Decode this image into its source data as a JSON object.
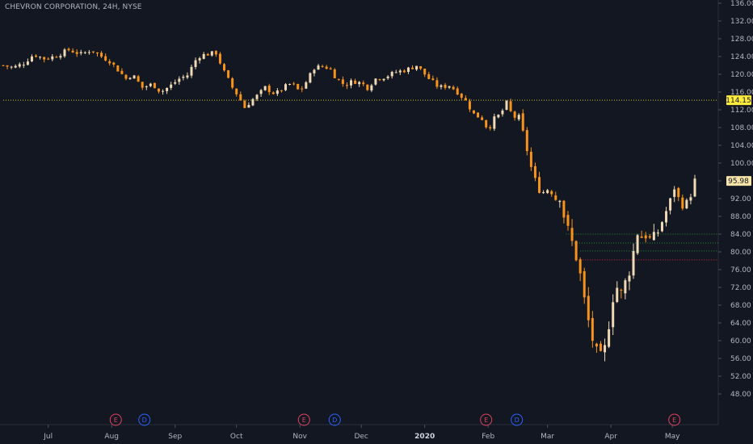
{
  "title": "CHEVRON CORPORATION, 24H, NYSE",
  "colors": {
    "background": "#131722",
    "up_candle": "#f0d9b5",
    "down_candle": "#f7931a",
    "axis_text": "#b2b5be",
    "price_line": "#c7c71a",
    "support_line": "#1f8f2f",
    "red_line": "#d0253c",
    "earnings_marker": "#e0435f",
    "dividend_marker": "#2962ff",
    "price_tag_current": "#f6e3a7",
    "price_tag_level": "#ffeb3b"
  },
  "chart_data": {
    "type": "candlestick",
    "title": "CHEVRON CORPORATION, 24H, NYSE",
    "ylim": [
      46,
      137
    ],
    "y_ticks": [
      "136.00",
      "132.00",
      "128.00",
      "124.00",
      "120.00",
      "116.00",
      "112.00",
      "108.00",
      "104.00",
      "100.00",
      "96.00",
      "92.00",
      "88.00",
      "84.00",
      "80.00",
      "76.00",
      "72.00",
      "68.00",
      "64.00",
      "60.00",
      "56.00",
      "52.00",
      "48.00"
    ],
    "x_ticks": [
      {
        "label": "Jul",
        "day": 22
      },
      {
        "label": "Aug",
        "day": 53
      },
      {
        "label": "Sep",
        "day": 84
      },
      {
        "label": "Oct",
        "day": 114
      },
      {
        "label": "Nov",
        "day": 145
      },
      {
        "label": "Dec",
        "day": 175
      },
      {
        "label": "2020",
        "day": 206,
        "bold": true
      },
      {
        "label": "Feb",
        "day": 237
      },
      {
        "label": "Mar",
        "day": 266
      },
      {
        "label": "Apr",
        "day": 297
      },
      {
        "label": "May",
        "day": 327
      }
    ],
    "price_labels": [
      {
        "label": "114.15",
        "value": 114.15,
        "style": "level"
      },
      {
        "label": "95.98",
        "value": 95.98,
        "style": "current"
      }
    ],
    "horizontal_lines": [
      {
        "value": 114.15,
        "color": "price_line",
        "from_day": 0
      },
      {
        "value": 84.0,
        "color": "support_line",
        "from_day": 275
      },
      {
        "value": 82.0,
        "color": "support_line",
        "from_day": 278
      },
      {
        "value": 80.2,
        "color": "support_line",
        "from_day": 282
      },
      {
        "value": 78.2,
        "color": "red_line",
        "from_day": 282
      }
    ],
    "events": [
      {
        "type": "E",
        "day": 55
      },
      {
        "type": "D",
        "day": 69
      },
      {
        "type": "E",
        "day": 147
      },
      {
        "type": "D",
        "day": 162
      },
      {
        "type": "E",
        "day": 236
      },
      {
        "type": "D",
        "day": 251
      },
      {
        "type": "E",
        "day": 328
      }
    ],
    "close_anchors": [
      [
        0,
        122
      ],
      [
        5,
        121.5
      ],
      [
        10,
        122.5
      ],
      [
        15,
        124.5
      ],
      [
        20,
        123.5
      ],
      [
        25,
        124
      ],
      [
        32,
        125.5
      ],
      [
        38,
        124.5
      ],
      [
        43,
        125.5
      ],
      [
        48,
        124
      ],
      [
        52,
        123
      ],
      [
        56,
        121
      ],
      [
        60,
        119
      ],
      [
        63,
        120
      ],
      [
        68,
        117
      ],
      [
        73,
        117.8
      ],
      [
        77,
        116
      ],
      [
        82,
        117.5
      ],
      [
        86,
        119
      ],
      [
        90,
        119.8
      ],
      [
        95,
        124
      ],
      [
        99,
        124.5
      ],
      [
        104,
        124.8
      ],
      [
        108,
        120.5
      ],
      [
        112,
        117
      ],
      [
        115,
        115
      ],
      [
        118,
        112.5
      ],
      [
        121,
        114
      ],
      [
        125,
        115.5
      ],
      [
        128,
        117
      ],
      [
        133,
        115.5
      ],
      [
        137,
        117
      ],
      [
        141,
        118
      ],
      [
        145,
        116
      ],
      [
        149,
        119
      ],
      [
        152,
        121.5
      ],
      [
        157,
        121.8
      ],
      [
        160,
        121
      ],
      [
        163,
        119
      ],
      [
        167,
        117.5
      ],
      [
        171,
        118.5
      ],
      [
        175,
        118
      ],
      [
        178,
        117
      ],
      [
        182,
        119
      ],
      [
        187,
        119.5
      ],
      [
        192,
        120.5
      ],
      [
        197,
        121
      ],
      [
        202,
        122
      ],
      [
        208,
        119
      ],
      [
        213,
        117
      ],
      [
        218,
        117.5
      ],
      [
        222,
        116
      ],
      [
        226,
        114
      ],
      [
        230,
        111
      ],
      [
        234,
        110
      ],
      [
        237,
        107.5
      ],
      [
        240,
        110
      ],
      [
        243,
        111
      ],
      [
        246,
        113.5
      ],
      [
        249,
        110.5
      ],
      [
        252,
        110
      ],
      [
        255,
        105
      ],
      [
        258,
        99
      ],
      [
        261,
        94.5
      ],
      [
        264,
        93.5
      ],
      [
        267,
        94.5
      ],
      [
        270,
        92
      ],
      [
        272,
        93
      ],
      [
        275,
        86
      ],
      [
        278,
        82
      ],
      [
        281,
        77.5
      ],
      [
        284,
        69
      ],
      [
        287,
        62
      ],
      [
        290,
        57
      ],
      [
        292,
        56
      ],
      [
        294,
        58
      ],
      [
        296,
        64
      ],
      [
        298,
        70
      ],
      [
        300,
        72
      ],
      [
        302,
        70.5
      ],
      [
        304,
        73
      ],
      [
        306,
        76
      ],
      [
        308,
        80
      ],
      [
        310,
        84.5
      ],
      [
        312,
        83.5
      ],
      [
        314,
        84
      ],
      [
        317,
        82
      ],
      [
        320,
        84.5
      ],
      [
        323,
        88
      ],
      [
        326,
        91.5
      ],
      [
        328,
        94.5
      ],
      [
        330,
        92
      ],
      [
        333,
        90
      ],
      [
        336,
        93
      ],
      [
        338,
        95.98
      ]
    ],
    "annotations": [
      {
        "marker": "E",
        "meaning": "earnings"
      },
      {
        "marker": "D",
        "meaning": "dividend"
      }
    ]
  }
}
